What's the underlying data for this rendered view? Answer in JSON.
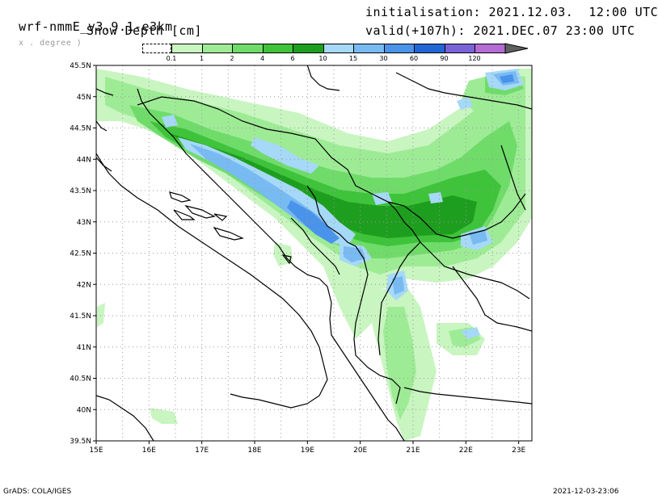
{
  "header": {
    "model": "wrf-nmmE_v3.9.1-e3km",
    "unit_note": "x . degree )",
    "variable": "Snow Depth [cm]",
    "init": "initialisation: 2021.12.03.  12:00 UTC",
    "valid": "valid(+107h): 2021.DEC.07 23:00 UTC"
  },
  "footer": {
    "left": "GrADS: COLA/IGES",
    "right": "2021-12-03-23:06"
  },
  "legend": {
    "labels": [
      "0.1",
      "1",
      "2",
      "4",
      "6",
      "10",
      "15",
      "30",
      "60",
      "90",
      "120"
    ],
    "colors": [
      "#c8f5c0",
      "#9eeb96",
      "#6fdc6a",
      "#3ec33a",
      "#1e9e1e",
      "#a6d8f7",
      "#78baf2",
      "#4a93ea",
      "#2266d6",
      "#7a63d8",
      "#b46cd4",
      "#606060"
    ]
  },
  "axes": {
    "lat_labels": [
      "45.5N",
      "45N",
      "44.5N",
      "44N",
      "43.5N",
      "43N",
      "42.5N",
      "42N",
      "41.5N",
      "41N",
      "40.5N",
      "40N",
      "39.5N"
    ],
    "lon_labels": [
      "15E",
      "16E",
      "17E",
      "18E",
      "19E",
      "20E",
      "21E",
      "22E",
      "23E"
    ]
  }
}
